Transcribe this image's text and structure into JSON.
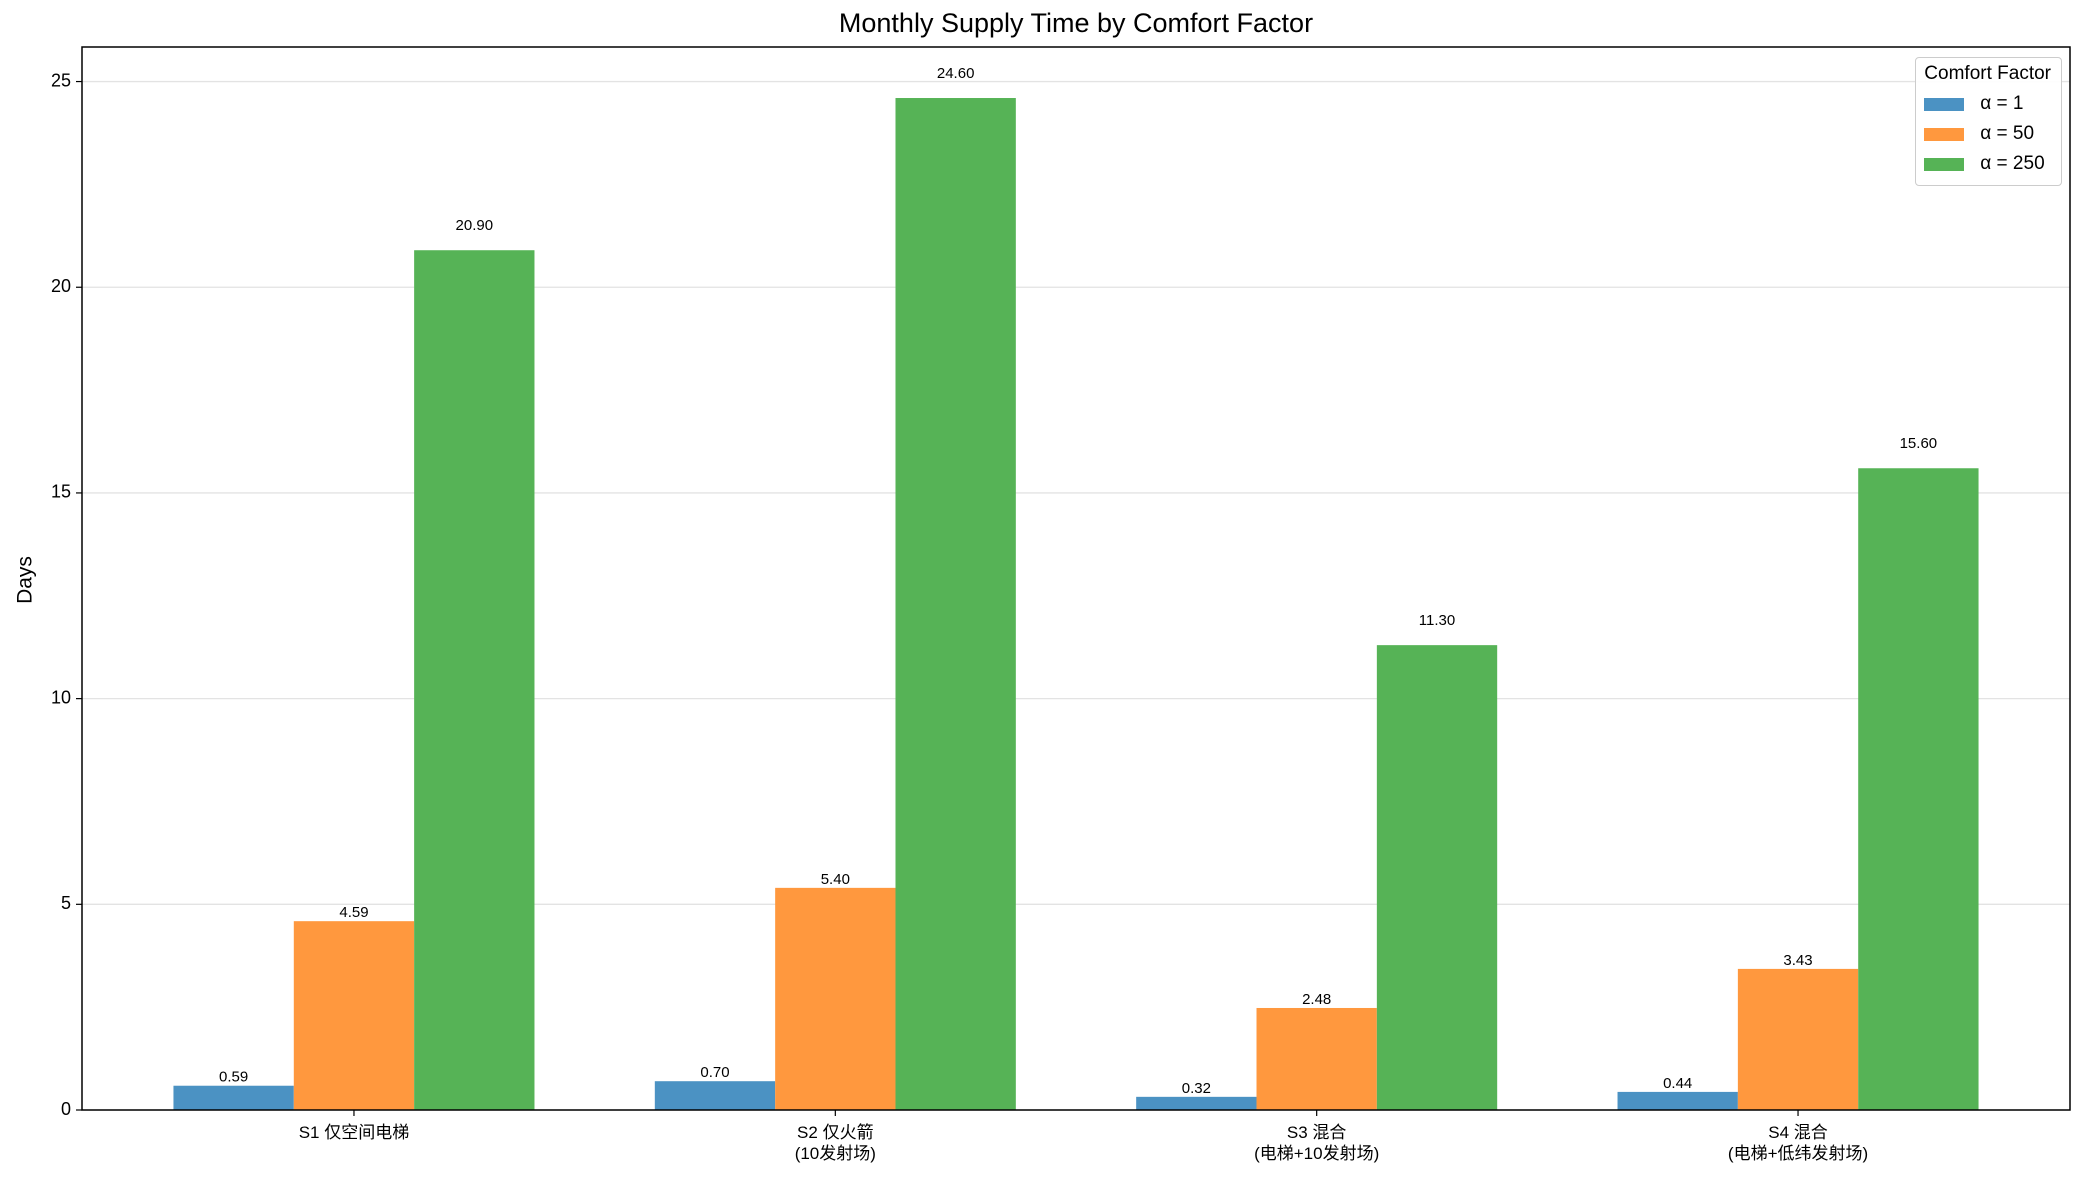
{
  "chart_data": {
    "type": "bar",
    "title": "Monthly Supply Time by Comfort Factor",
    "y_label": "Days",
    "categories": [
      "S1 仅空间电梯",
      "S2 仅火箭\n(10发射场)",
      "S3 混合\n(电梯+10发射场)",
      "S4 混合\n(电梯+低纬发射场)"
    ],
    "series": [
      {
        "name": "α = 1",
        "color": "#4b92c3",
        "values": [
          0.59,
          0.7,
          0.32,
          0.44
        ],
        "value_labels": [
          "0.59",
          "0.70",
          "0.32",
          "0.44"
        ]
      },
      {
        "name": "α = 50",
        "color": "#ff983e",
        "values": [
          4.59,
          5.4,
          2.48,
          3.43
        ],
        "value_labels": [
          "4.59",
          "5.40",
          "2.48",
          "3.43"
        ]
      },
      {
        "name": "α = 250",
        "color": "#56b356",
        "values": [
          20.9,
          24.6,
          11.3,
          15.6
        ],
        "value_labels": [
          "20.90",
          "24.60",
          "11.30",
          "15.60"
        ]
      }
    ],
    "legend_title": "Comfort Factor",
    "legend": "upper right",
    "ylim": [
      0,
      25.84
    ],
    "yticks": [
      0,
      5,
      10,
      15,
      20,
      25
    ],
    "grid": true
  }
}
